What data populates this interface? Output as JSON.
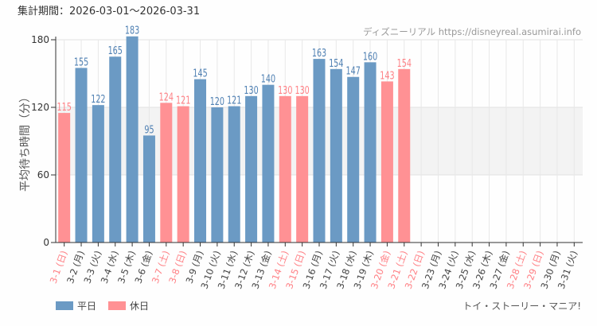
{
  "header": {
    "period": "集計期間：2026-03-01～2026-03-31",
    "site": "ディズニーリアル https://disneyreal.asumirai.info"
  },
  "footer": {
    "attraction": "トイ・ストーリー・マニア!"
  },
  "colors": {
    "weekday": "#6b9ac4",
    "holiday": "#ff9194",
    "weekday_label": "#4f80b3",
    "holiday_label": "#ff8085",
    "band": "#f3f3f3"
  },
  "chart_data": {
    "type": "bar",
    "title": "",
    "ylabel": "平均待ち時間（分）",
    "xlabel": "",
    "ylim": [
      0,
      180
    ],
    "yticks": [
      0,
      60,
      120,
      180
    ],
    "shaded_band": [
      60,
      120
    ],
    "grid": true,
    "legend": {
      "placement": "bottom-left",
      "entries": [
        {
          "name": "平日",
          "color": "#6b9ac4"
        },
        {
          "name": "休日",
          "color": "#ff9194"
        }
      ]
    },
    "categories": [
      "3-1 (日)",
      "3-2 (月)",
      "3-3 (火)",
      "3-4 (水)",
      "3-5 (木)",
      "3-6 (金)",
      "3-7 (土)",
      "3-8 (日)",
      "3-9 (月)",
      "3-10 (火)",
      "3-11 (水)",
      "3-12 (木)",
      "3-13 (金)",
      "3-14 (土)",
      "3-15 (日)",
      "3-16 (月)",
      "3-17 (火)",
      "3-18 (水)",
      "3-19 (木)",
      "3-20 (金)",
      "3-21 (土)",
      "3-22 (日)",
      "3-23 (月)",
      "3-24 (火)",
      "3-25 (水)",
      "3-26 (木)",
      "3-27 (金)",
      "3-28 (土)",
      "3-29 (日)",
      "3-30 (月)",
      "3-31 (火)"
    ],
    "holiday": [
      true,
      false,
      false,
      false,
      false,
      false,
      true,
      true,
      false,
      false,
      false,
      false,
      false,
      true,
      true,
      false,
      false,
      false,
      false,
      true,
      true,
      true,
      false,
      false,
      false,
      false,
      false,
      true,
      true,
      false,
      false
    ],
    "values": [
      115,
      155,
      122,
      165,
      183,
      95,
      124,
      121,
      145,
      120,
      121,
      130,
      140,
      130,
      130,
      163,
      154,
      147,
      160,
      143,
      154,
      null,
      null,
      null,
      null,
      null,
      null,
      null,
      null,
      null,
      null
    ]
  }
}
